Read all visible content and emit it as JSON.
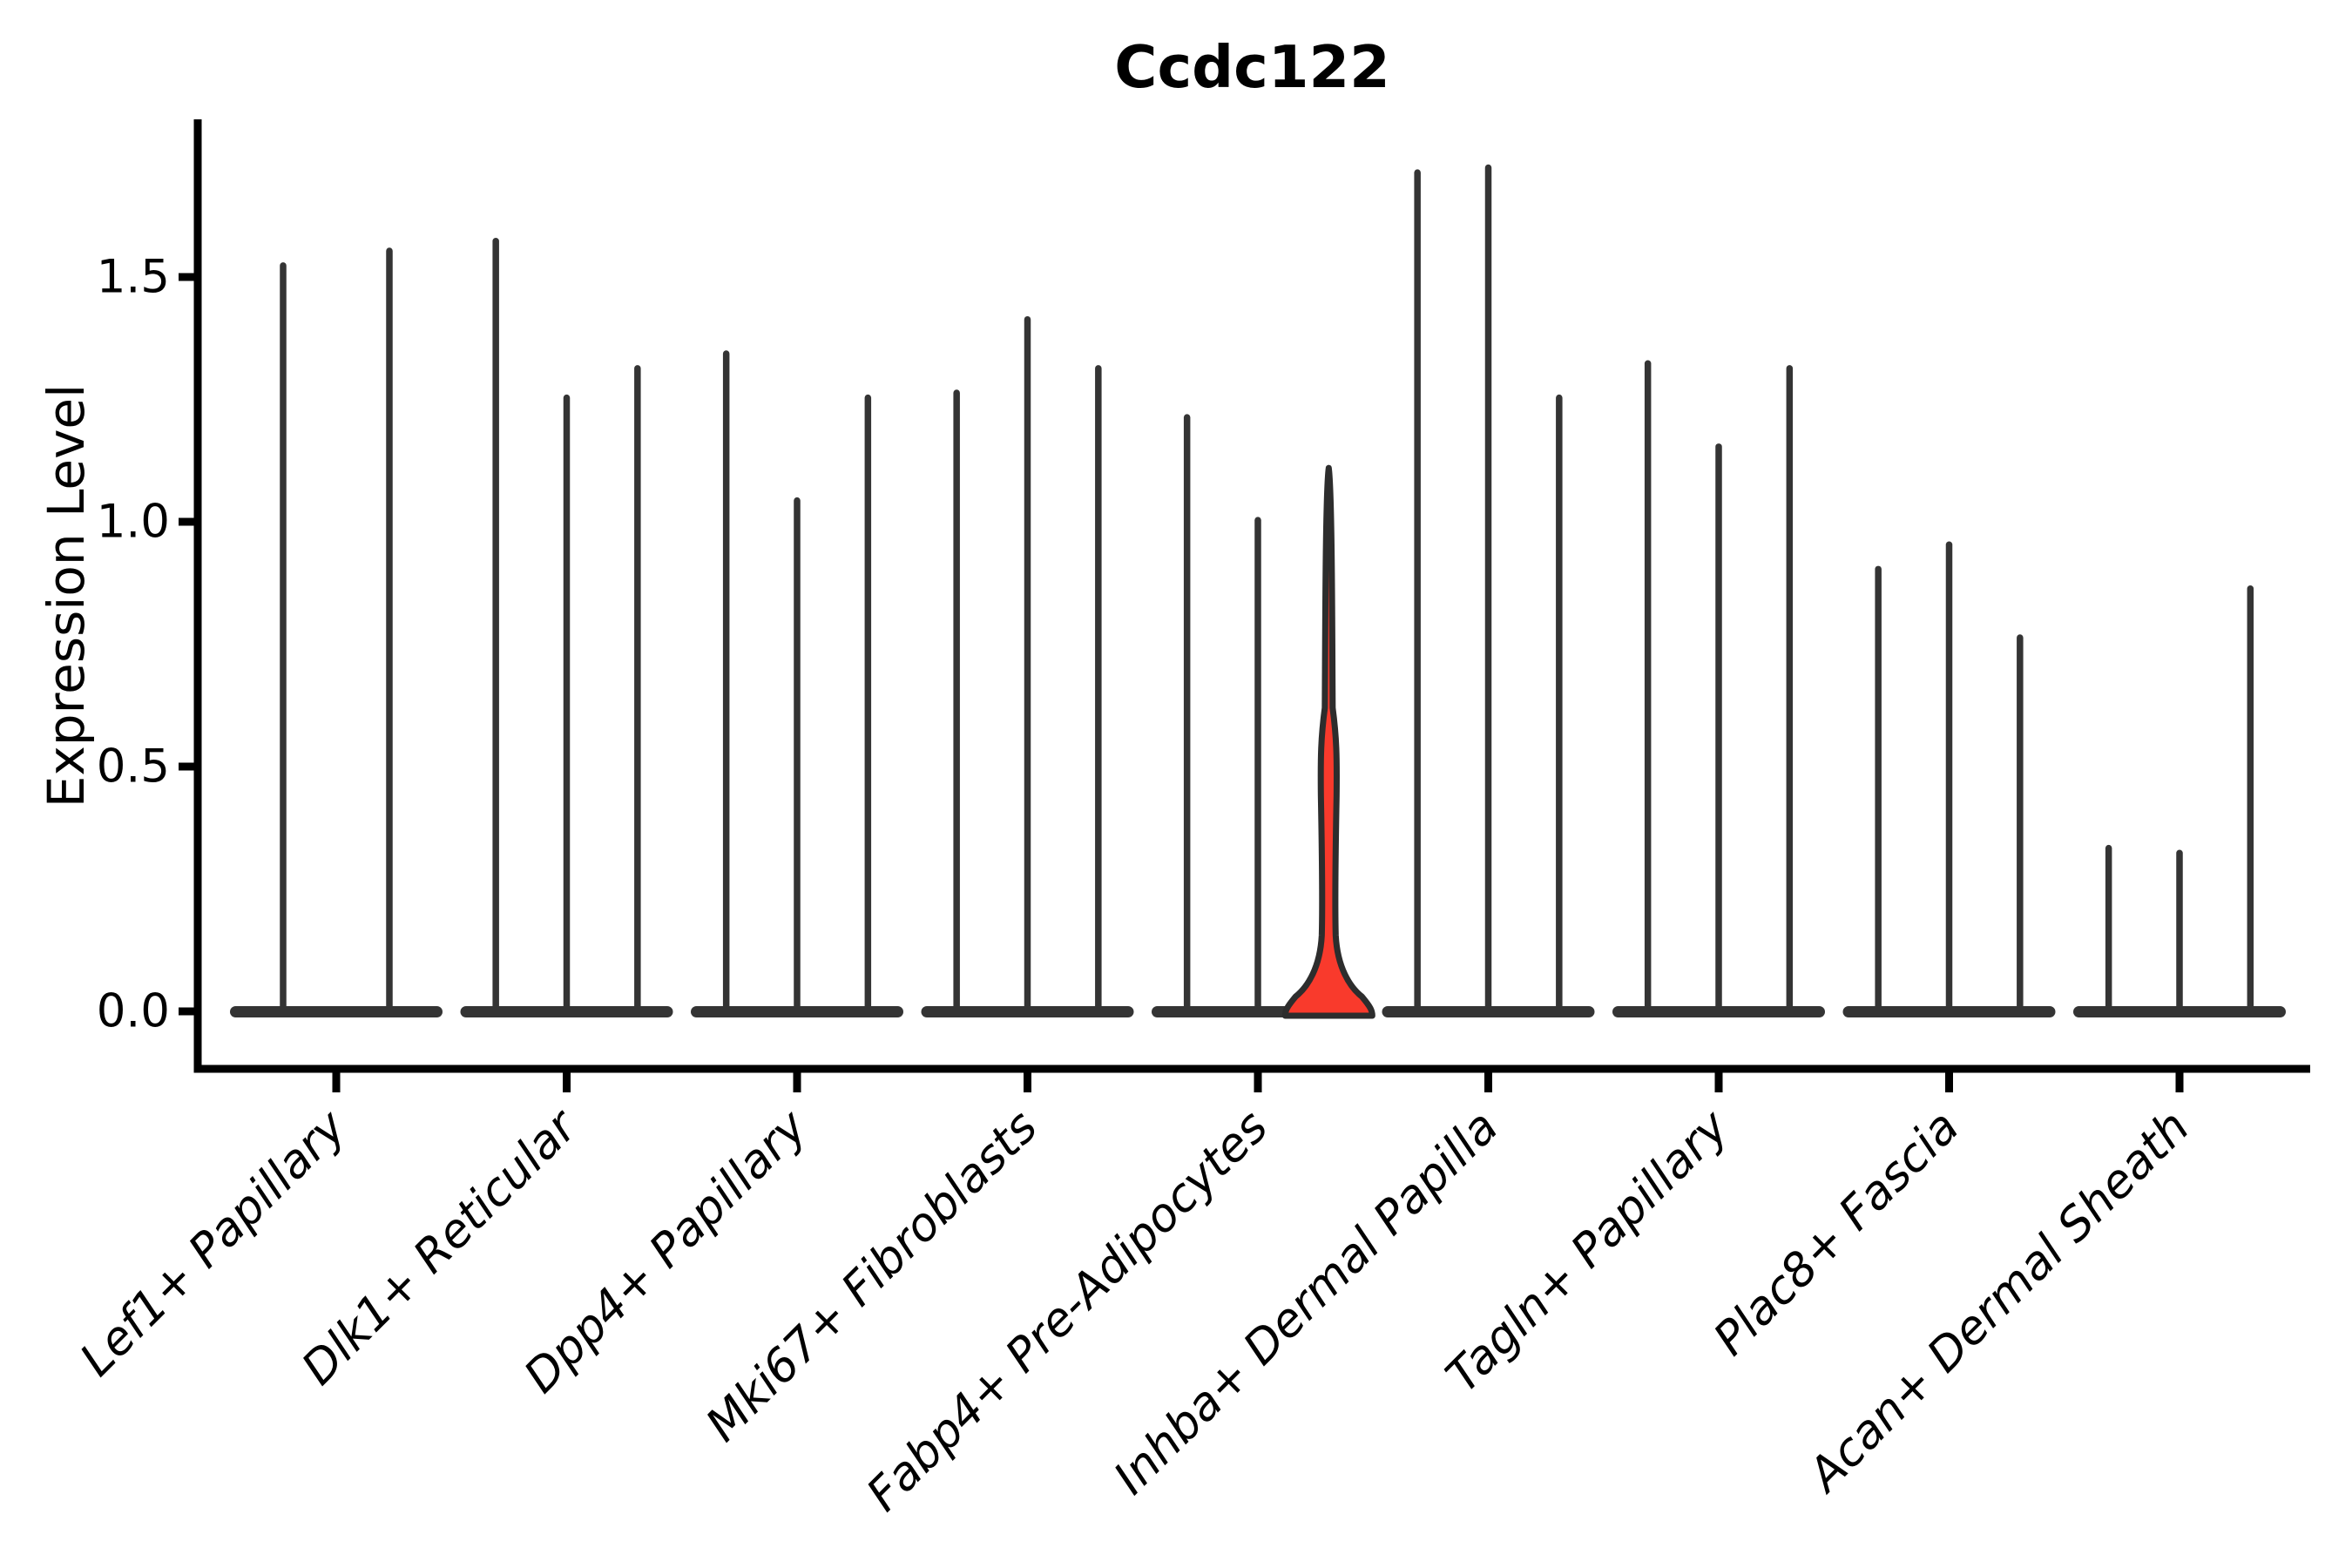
{
  "chart_data": {
    "type": "violin",
    "title": "Ccdc122",
    "xlabel": "",
    "ylabel": "Expression Level",
    "yticks": [
      0.0,
      0.5,
      1.0,
      1.5
    ],
    "ytick_labels": [
      "0.0",
      "0.5",
      "1.0",
      "1.5"
    ],
    "ylim": [
      -0.12,
      1.81
    ],
    "grid": false,
    "legend": false,
    "groups": [
      {
        "label": "Lef1+ Papillary",
        "violin_heights": [
          1.53,
          1.56
        ]
      },
      {
        "label": "Dlk1+ Reticular",
        "violin_heights": [
          1.58,
          1.26,
          1.32
        ]
      },
      {
        "label": "Dpp4+ Papillary",
        "violin_heights": [
          1.35,
          1.05,
          1.26
        ]
      },
      {
        "label": "Mki67+ Fibroblasts",
        "violin_heights": [
          1.27,
          1.42,
          1.32
        ]
      },
      {
        "label": "Fabp4+ Pre-Adipocytes",
        "violin_heights": [
          1.22,
          1.01,
          1.11
        ],
        "highlighted_violin": 2
      },
      {
        "label": "Inhba+ Dermal Papilla",
        "violin_heights": [
          1.72,
          1.73,
          1.26
        ]
      },
      {
        "label": "Tagln+ Papillary",
        "violin_heights": [
          1.33,
          1.16,
          1.32
        ]
      },
      {
        "label": "Plac8+ Fascia",
        "violin_heights": [
          0.91,
          0.96,
          0.77
        ]
      },
      {
        "label": "Acan+ Dermal Sheath",
        "violin_heights": [
          0.34,
          0.33,
          0.87
        ]
      }
    ],
    "colors": {
      "violin_line": "#343434",
      "highlight_fill": "#f93a2c",
      "highlight_stroke": "#2d2d2d",
      "axis": "#000000",
      "text": "#000000"
    }
  }
}
